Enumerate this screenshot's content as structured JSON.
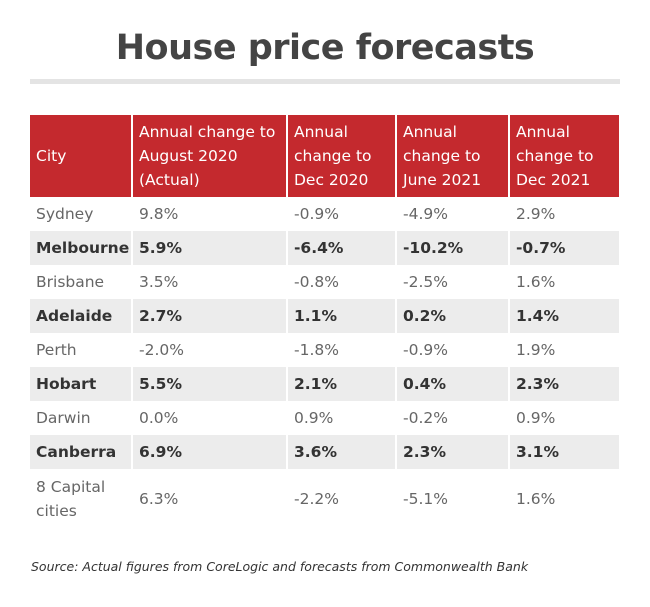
{
  "title": "House price forecasts",
  "chart_data": {
    "type": "table",
    "columns": [
      "City",
      "Annual change to August 2020 (Actual)",
      "Annual change to Dec 2020",
      "Annual change to June 2021",
      "Annual change to Dec 2021"
    ],
    "rows": [
      [
        "Sydney",
        "9.8%",
        "-0.9%",
        "-4.9%",
        "2.9%"
      ],
      [
        "Melbourne",
        "5.9%",
        "-6.4%",
        "-10.2%",
        "-0.7%"
      ],
      [
        "Brisbane",
        "3.5%",
        "-0.8%",
        "-2.5%",
        "1.6%"
      ],
      [
        "Adelaide",
        "2.7%",
        "1.1%",
        "0.2%",
        "1.4%"
      ],
      [
        "Perth",
        "-2.0%",
        "-1.8%",
        "-0.9%",
        "1.9%"
      ],
      [
        "Hobart",
        "5.5%",
        "2.1%",
        "0.4%",
        "2.3%"
      ],
      [
        "Darwin",
        "0.0%",
        "0.9%",
        "-0.2%",
        "0.9%"
      ],
      [
        "Canberra",
        "6.9%",
        "3.6%",
        "2.3%",
        "3.1%"
      ],
      [
        "8 Capital cities",
        "6.3%",
        "-2.2%",
        "-5.1%",
        "1.6%"
      ]
    ]
  },
  "source": "Source: Actual figures from CoreLogic and forecasts from Commonwealth Bank",
  "colors": {
    "header": "#c4292e",
    "alt_row": "#ececec",
    "title": "#444444"
  }
}
